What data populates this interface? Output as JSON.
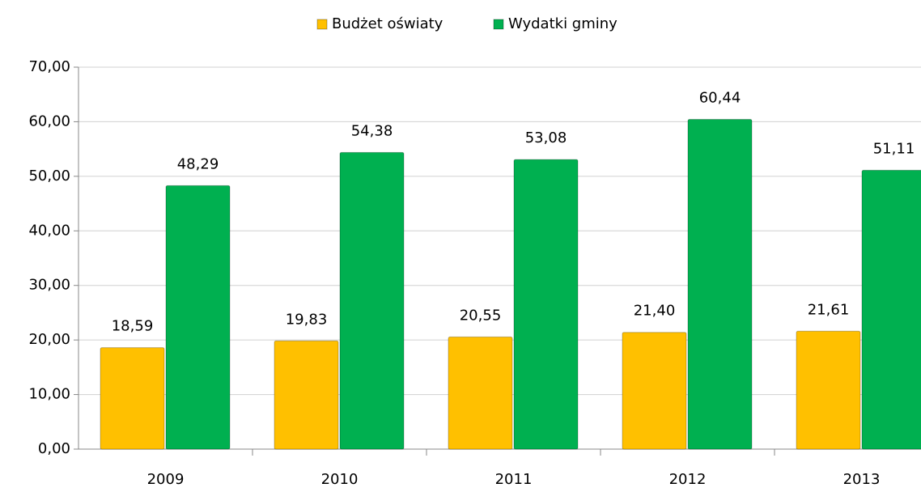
{
  "chart_data": {
    "type": "bar",
    "categories": [
      "2009",
      "2010",
      "2011",
      "2012",
      "2013"
    ],
    "series": [
      {
        "name": "Budżet oświaty",
        "color": "#ffc000",
        "values": [
          18.59,
          19.83,
          20.55,
          21.4,
          21.61
        ],
        "value_labels": [
          "18,59",
          "19,83",
          "20,55",
          "21,40",
          "21,61"
        ]
      },
      {
        "name": "Wydatki gminy",
        "color": "#00b050",
        "values": [
          48.29,
          54.38,
          53.08,
          60.44,
          51.11
        ],
        "value_labels": [
          "48,29",
          "54,38",
          "53,08",
          "60,44",
          "51,11"
        ]
      }
    ],
    "ylim": [
      0,
      70
    ],
    "yticks": [
      {
        "value": 0,
        "label": "0,00"
      },
      {
        "value": 10,
        "label": "10,00"
      },
      {
        "value": 20,
        "label": "20,00"
      },
      {
        "value": 30,
        "label": "30,00"
      },
      {
        "value": 40,
        "label": "40,00"
      },
      {
        "value": 50,
        "label": "50,00"
      },
      {
        "value": 60,
        "label": "60,00"
      },
      {
        "value": 70,
        "label": "70,00"
      }
    ],
    "grid": true,
    "legend": "top"
  }
}
